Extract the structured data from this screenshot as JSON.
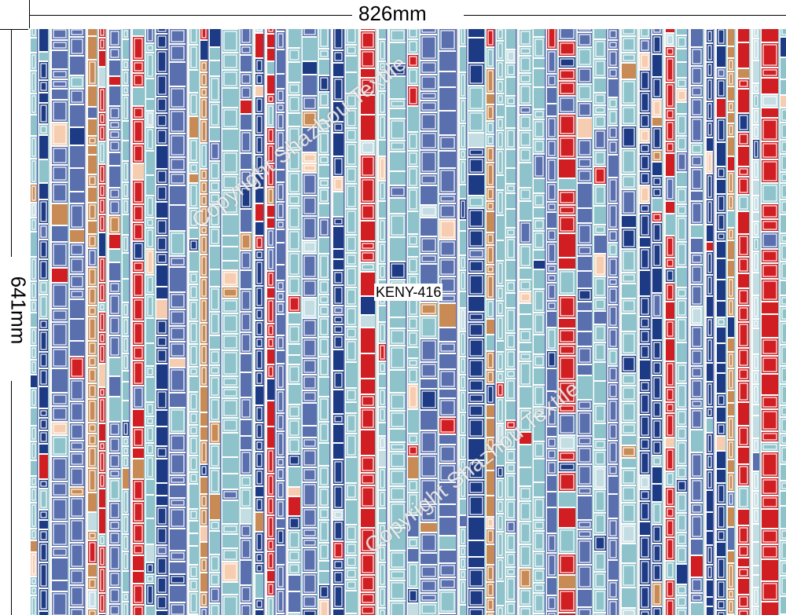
{
  "dimensions": {
    "width_label": "826mm",
    "height_label": "641mm"
  },
  "design": {
    "code": "KENY-416"
  },
  "watermark": {
    "text": "Copyright Shazhou Textile"
  },
  "palette": {
    "navy": "#1d3a84",
    "blue": "#5a6fae",
    "light_blue": "#8fc3cb",
    "pale_blue": "#c3dde3",
    "red": "#d01e22",
    "peach": "#f6cdb0",
    "tan": "#c88b55",
    "white": "#ffffff"
  }
}
